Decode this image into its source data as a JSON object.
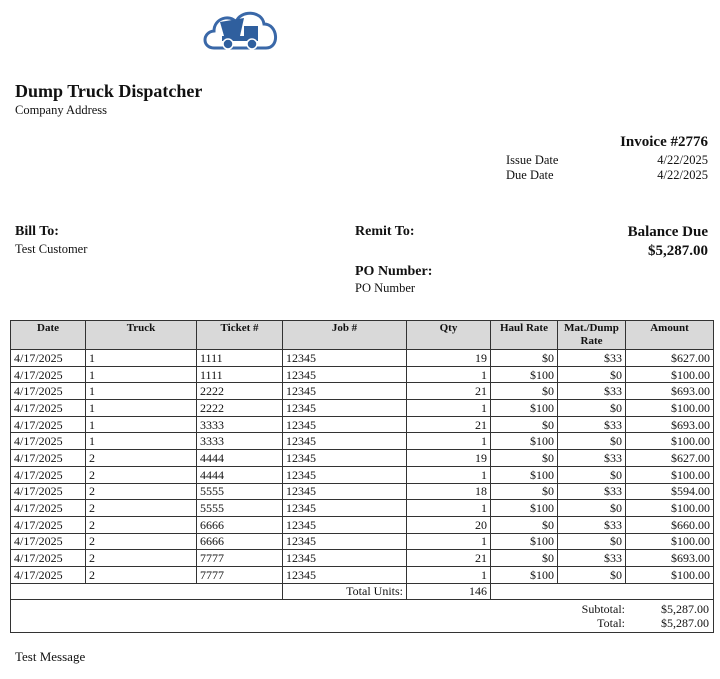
{
  "header": {
    "title": "Dump Truck Dispatcher",
    "address": "Company Address"
  },
  "invoice": {
    "number": "Invoice #2776",
    "issue_date_label": "Issue Date",
    "issue_date": "4/22/2025",
    "due_date_label": "Due Date",
    "due_date": "4/22/2025"
  },
  "bill_to": {
    "label": "Bill To:",
    "name": "Test Customer"
  },
  "remit_to": {
    "label": "Remit To:"
  },
  "balance": {
    "label": "Balance Due",
    "amount": "$5,287.00"
  },
  "po": {
    "label": "PO Number:",
    "value": "PO Number"
  },
  "table": {
    "columns": [
      "Date",
      "Truck",
      "Ticket #",
      "Job #",
      "Qty",
      "Haul Rate",
      "Mat./Dump Rate",
      "Amount"
    ],
    "rows": [
      [
        "4/17/2025",
        "1",
        "1111",
        "12345",
        "19",
        "$0",
        "$33",
        "$627.00"
      ],
      [
        "4/17/2025",
        "1",
        "1111",
        "12345",
        "1",
        "$100",
        "$0",
        "$100.00"
      ],
      [
        "4/17/2025",
        "1",
        "2222",
        "12345",
        "21",
        "$0",
        "$33",
        "$693.00"
      ],
      [
        "4/17/2025",
        "1",
        "2222",
        "12345",
        "1",
        "$100",
        "$0",
        "$100.00"
      ],
      [
        "4/17/2025",
        "1",
        "3333",
        "12345",
        "21",
        "$0",
        "$33",
        "$693.00"
      ],
      [
        "4/17/2025",
        "1",
        "3333",
        "12345",
        "1",
        "$100",
        "$0",
        "$100.00"
      ],
      [
        "4/17/2025",
        "2",
        "4444",
        "12345",
        "19",
        "$0",
        "$33",
        "$627.00"
      ],
      [
        "4/17/2025",
        "2",
        "4444",
        "12345",
        "1",
        "$100",
        "$0",
        "$100.00"
      ],
      [
        "4/17/2025",
        "2",
        "5555",
        "12345",
        "18",
        "$0",
        "$33",
        "$594.00"
      ],
      [
        "4/17/2025",
        "2",
        "5555",
        "12345",
        "1",
        "$100",
        "$0",
        "$100.00"
      ],
      [
        "4/17/2025",
        "2",
        "6666",
        "12345",
        "20",
        "$0",
        "$33",
        "$660.00"
      ],
      [
        "4/17/2025",
        "2",
        "6666",
        "12345",
        "1",
        "$100",
        "$0",
        "$100.00"
      ],
      [
        "4/17/2025",
        "2",
        "7777",
        "12345",
        "21",
        "$0",
        "$33",
        "$693.00"
      ],
      [
        "4/17/2025",
        "2",
        "7777",
        "12345",
        "1",
        "$100",
        "$0",
        "$100.00"
      ]
    ],
    "total_units_label": "Total Units:",
    "total_units": "146",
    "subtotal_label": "Subtotal:",
    "subtotal": "$5,287.00",
    "total_label": "Total:",
    "total": "$5,287.00"
  },
  "message": "Test Message"
}
